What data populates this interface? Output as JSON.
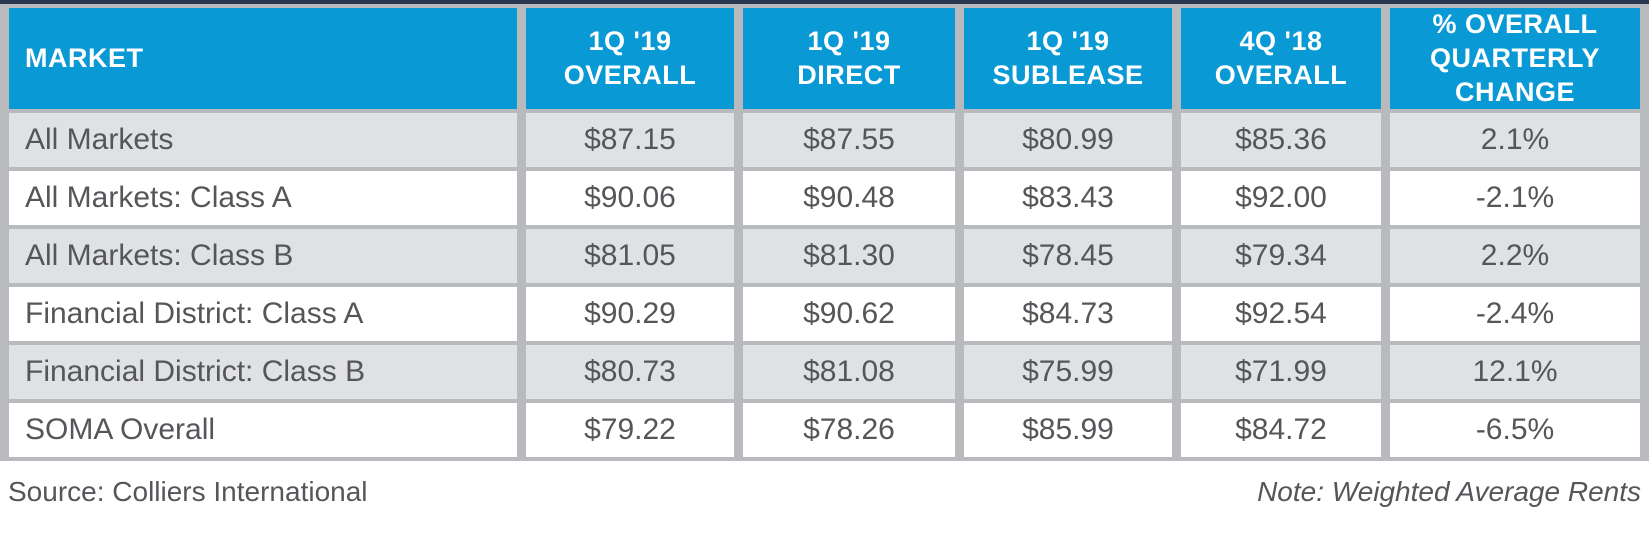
{
  "colors": {
    "header_bg": "#0999d5",
    "row_alt_bg": "#e0e1e3",
    "grid_gray": "#b9babd",
    "top_rule_navy": "#2b3850",
    "text_gray": "#55565a"
  },
  "chart_data": {
    "type": "table",
    "columns": [
      "MARKET",
      "1Q '19\nOVERALL",
      "1Q '19\nDIRECT",
      "1Q '19\nSUBLEASE",
      "4Q '18\nOVERALL",
      "% OVERALL\nQUARTERLY\nCHANGE"
    ],
    "rows": [
      {
        "market": "All Markets",
        "values": [
          "$87.15",
          "$87.55",
          "$80.99",
          "$85.36",
          "2.1%"
        ]
      },
      {
        "market": "All Markets: Class A",
        "values": [
          "$90.06",
          "$90.48",
          "$83.43",
          "$92.00",
          "-2.1%"
        ]
      },
      {
        "market": "All Markets: Class B",
        "values": [
          "$81.05",
          "$81.30",
          "$78.45",
          "$79.34",
          "2.2%"
        ]
      },
      {
        "market": "Financial District: Class A",
        "values": [
          "$90.29",
          "$90.62",
          "$84.73",
          "$92.54",
          "-2.4%"
        ]
      },
      {
        "market": "Financial District: Class B",
        "values": [
          "$80.73",
          "$81.08",
          "$75.99",
          "$71.99",
          "12.1%"
        ]
      },
      {
        "market": "SOMA Overall",
        "values": [
          "$79.22",
          "$78.26",
          "$85.99",
          "$84.72",
          "-6.5%"
        ]
      }
    ],
    "source": "Source: Colliers International",
    "note": "Note: Weighted Average Rents"
  }
}
